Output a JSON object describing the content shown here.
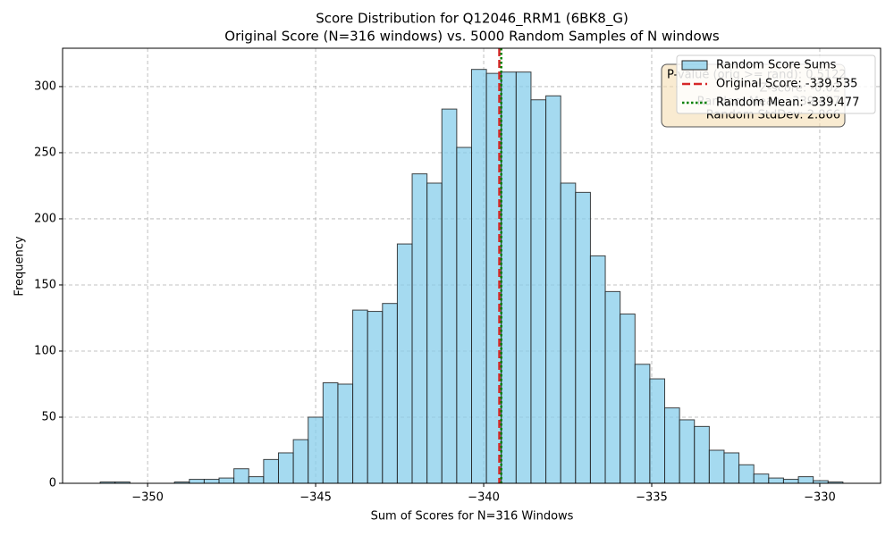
{
  "chart_data": {
    "type": "histogram",
    "title": "Score Distribution for Q12046_RRM1 (6BK8_G)",
    "subtitle": "Original Score (N=316 windows) vs. 5000 Random Samples of N windows",
    "x_label": "Sum of Scores for N=316 Windows",
    "y_label": "Frequency",
    "series": [
      {
        "name": "Random Score Sums",
        "color": "#87ceeb",
        "bins": [
          -351.41,
          -350.968,
          -350.526,
          -350.084,
          -349.642,
          -349.2,
          -348.758,
          -348.316,
          -347.874,
          -347.432,
          -346.99,
          -346.548,
          -346.106,
          -345.664,
          -345.222,
          -344.78,
          -344.338,
          -343.896,
          -343.454,
          -343.012,
          -342.57,
          -342.128,
          -341.686,
          -341.244,
          -340.802,
          -340.36,
          -339.918,
          -339.476,
          -339.034,
          -338.592,
          -338.15,
          -337.708,
          -337.266,
          -336.824,
          -336.382,
          -335.94,
          -335.498,
          -335.056,
          -334.614,
          -334.172,
          -333.73,
          -333.288,
          -332.846,
          -332.404,
          -331.962,
          -331.52,
          -331.078,
          -330.636,
          -330.194,
          -329.752,
          -329.31
        ],
        "values": [
          1,
          1,
          0,
          0,
          0,
          1,
          3,
          3,
          4,
          11,
          5,
          18,
          23,
          33,
          50,
          76,
          75,
          131,
          130,
          136,
          181,
          234,
          227,
          283,
          254,
          313,
          310,
          311,
          311,
          290,
          293,
          227,
          220,
          172,
          145,
          128,
          90,
          79,
          57,
          48,
          43,
          25,
          23,
          14,
          7,
          4,
          3,
          5,
          2,
          1
        ]
      }
    ],
    "vlines": [
      {
        "name": "Original Score: -339.535",
        "value": -339.535,
        "color": "#d62728",
        "style": "dashed"
      },
      {
        "name": "Random Mean: -339.477",
        "value": -339.477,
        "color": "#008000",
        "style": "dotted"
      }
    ],
    "stats_box": [
      "P-value (orig >= rand): 0.5122",
      "Z-score: -0.02",
      "Random Mean: -339.477",
      "Random StdDev: 2.866"
    ],
    "xlim": [
      -352.53,
      -328.19
    ],
    "ylim": [
      0,
      329
    ],
    "xticks": [
      {
        "value": -350,
        "label": "−350"
      },
      {
        "value": -345,
        "label": "−345"
      },
      {
        "value": -340,
        "label": "−340"
      },
      {
        "value": -335,
        "label": "−335"
      },
      {
        "value": -330,
        "label": "−330"
      }
    ],
    "yticks": [
      0,
      50,
      100,
      150,
      200,
      250,
      300
    ],
    "grid": true,
    "legend": "upper right"
  }
}
